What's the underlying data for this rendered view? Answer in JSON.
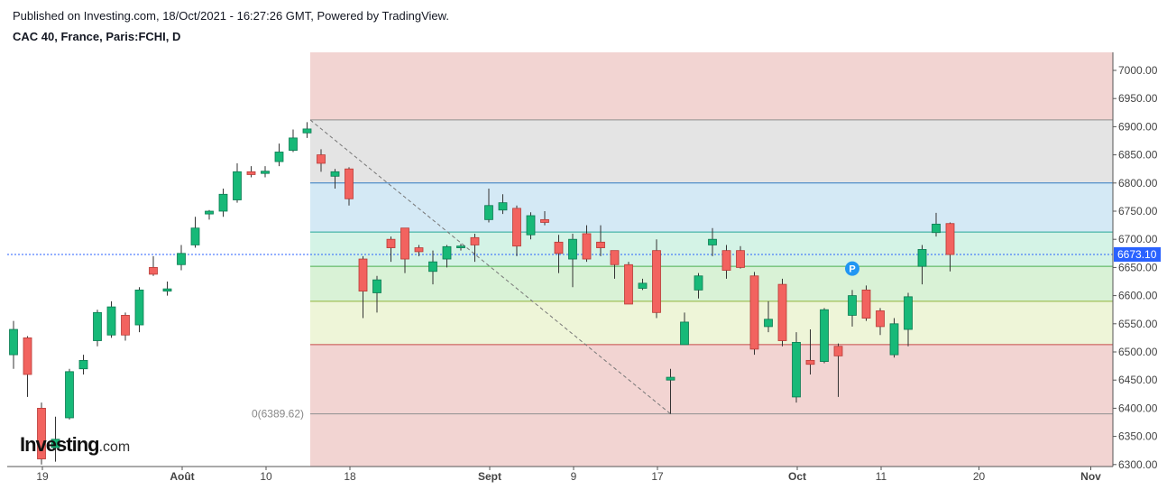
{
  "header": {
    "published": "Published on Investing.com, 18/Oct/2021 - 16:27:26 GMT, Powered by TradingView.",
    "symbol": "CAC 40, France, Paris:FCHI, D"
  },
  "logo": {
    "word": "Investing",
    "suffix": ".com"
  },
  "chart_data": {
    "type": "candlestick",
    "y_ticks": [
      "7000.00",
      "6950.00",
      "6900.00",
      "6850.00",
      "6800.00",
      "6750.00",
      "6700.00",
      "6650.00",
      "6600.00",
      "6550.00",
      "6500.00",
      "6450.00",
      "6400.00",
      "6350.00",
      "6300.00"
    ],
    "ylim": [
      6290,
      7030
    ],
    "x_ticks": [
      {
        "label": "19",
        "day": 0
      },
      {
        "label": "Août",
        "day": 10
      },
      {
        "label": "10",
        "day": 16
      },
      {
        "label": "18",
        "day": 22
      },
      {
        "label": "Sept",
        "day": 32
      },
      {
        "label": "9",
        "day": 38
      },
      {
        "label": "17",
        "day": 44
      },
      {
        "label": "Oct",
        "day": 54
      },
      {
        "label": "11",
        "day": 60
      },
      {
        "label": "20",
        "day": 67
      },
      {
        "label": "Nov",
        "day": 75
      }
    ],
    "last_price": 6673.1,
    "last_price_label": "6673.10",
    "fib_anchor_label": "0(6389.62)",
    "fib_levels": [
      6390,
      6513,
      6590,
      6652,
      6713,
      6800,
      6912
    ],
    "fib_bands": [
      {
        "from": 6270,
        "to": 6390,
        "color": "#f2d4d2"
      },
      {
        "from": 6390,
        "to": 6513,
        "color": "#f2d4d2"
      },
      {
        "from": 6513,
        "to": 6590,
        "color": "#eef5d8"
      },
      {
        "from": 6590,
        "to": 6652,
        "color": "#d9f2d6"
      },
      {
        "from": 6652,
        "to": 6713,
        "color": "#d4f3e6"
      },
      {
        "from": 6713,
        "to": 6800,
        "color": "#d4e9f5"
      },
      {
        "from": 6800,
        "to": 6912,
        "color": "#e4e4e4"
      },
      {
        "from": 6912,
        "to": 7040,
        "color": "#f2d4d2"
      }
    ],
    "fib_line_colors": [
      "#909090",
      "#c84a4a",
      "#8fb23a",
      "#4caf50",
      "#26a69a",
      "#2f7ac2",
      "#909090"
    ],
    "colors": {
      "up": "#17b978",
      "down": "#f2635f",
      "up_border": "#0d7a52",
      "down_border": "#b83a36"
    },
    "marker": {
      "label": "P",
      "day": 60,
      "price": 6648,
      "color": "#2196f3"
    },
    "candles": [
      {
        "d": 0,
        "o": 6495,
        "h": 6555,
        "l": 6470,
        "c": 6540
      },
      {
        "d": 1,
        "o": 6525,
        "h": 6528,
        "l": 6420,
        "c": 6460
      },
      {
        "d": 2,
        "o": 6400,
        "h": 6410,
        "l": 6300,
        "c": 6310
      },
      {
        "d": 3,
        "o": 6330,
        "h": 6385,
        "l": 6305,
        "c": 6345
      },
      {
        "d": 4,
        "o": 6383,
        "h": 6470,
        "l": 6380,
        "c": 6465
      },
      {
        "d": 5,
        "o": 6470,
        "h": 6495,
        "l": 6460,
        "c": 6485
      },
      {
        "d": 6,
        "o": 6520,
        "h": 6575,
        "l": 6510,
        "c": 6570
      },
      {
        "d": 7,
        "o": 6530,
        "h": 6590,
        "l": 6525,
        "c": 6580
      },
      {
        "d": 8,
        "o": 6565,
        "h": 6570,
        "l": 6520,
        "c": 6530
      },
      {
        "d": 9,
        "o": 6548,
        "h": 6615,
        "l": 6535,
        "c": 6610
      },
      {
        "d": 10,
        "o": 6650,
        "h": 6670,
        "l": 6635,
        "c": 6638
      },
      {
        "d": 11,
        "o": 6608,
        "h": 6625,
        "l": 6600,
        "c": 6612
      },
      {
        "d": 12,
        "o": 6655,
        "h": 6690,
        "l": 6645,
        "c": 6675
      },
      {
        "d": 13,
        "o": 6690,
        "h": 6740,
        "l": 6685,
        "c": 6720
      },
      {
        "d": 14,
        "o": 6745,
        "h": 6752,
        "l": 6735,
        "c": 6750
      },
      {
        "d": 15,
        "o": 6750,
        "h": 6790,
        "l": 6740,
        "c": 6780
      },
      {
        "d": 16,
        "o": 6770,
        "h": 6835,
        "l": 6765,
        "c": 6820
      },
      {
        "d": 17,
        "o": 6820,
        "h": 6830,
        "l": 6810,
        "c": 6815
      },
      {
        "d": 18,
        "o": 6817,
        "h": 6830,
        "l": 6810,
        "c": 6821
      },
      {
        "d": 19,
        "o": 6838,
        "h": 6870,
        "l": 6830,
        "c": 6855
      },
      {
        "d": 20,
        "o": 6858,
        "h": 6895,
        "l": 6855,
        "c": 6880
      },
      {
        "d": 21,
        "o": 6889,
        "h": 6908,
        "l": 6880,
        "c": 6896
      },
      {
        "d": 22,
        "o": 6850,
        "h": 6860,
        "l": 6820,
        "c": 6835
      },
      {
        "d": 23,
        "o": 6812,
        "h": 6825,
        "l": 6790,
        "c": 6820
      },
      {
        "d": 24,
        "o": 6825,
        "h": 6828,
        "l": 6760,
        "c": 6772
      },
      {
        "d": 25,
        "o": 6665,
        "h": 6670,
        "l": 6560,
        "c": 6608
      },
      {
        "d": 26,
        "o": 6605,
        "h": 6635,
        "l": 6570,
        "c": 6628
      },
      {
        "d": 27,
        "o": 6700,
        "h": 6705,
        "l": 6660,
        "c": 6685
      },
      {
        "d": 28,
        "o": 6720,
        "h": 6720,
        "l": 6640,
        "c": 6665
      },
      {
        "d": 29,
        "o": 6685,
        "h": 6690,
        "l": 6670,
        "c": 6678
      },
      {
        "d": 30,
        "o": 6643,
        "h": 6680,
        "l": 6620,
        "c": 6660
      },
      {
        "d": 31,
        "o": 6665,
        "h": 6690,
        "l": 6650,
        "c": 6687
      },
      {
        "d": 32,
        "o": 6685,
        "h": 6692,
        "l": 6680,
        "c": 6688
      },
      {
        "d": 33,
        "o": 6703,
        "h": 6710,
        "l": 6660,
        "c": 6690
      },
      {
        "d": 34,
        "o": 6735,
        "h": 6790,
        "l": 6730,
        "c": 6760
      },
      {
        "d": 35,
        "o": 6752,
        "h": 6780,
        "l": 6745,
        "c": 6765
      },
      {
        "d": 36,
        "o": 6755,
        "h": 6760,
        "l": 6670,
        "c": 6688
      },
      {
        "d": 37,
        "o": 6708,
        "h": 6748,
        "l": 6700,
        "c": 6742
      },
      {
        "d": 38,
        "o": 6735,
        "h": 6750,
        "l": 6725,
        "c": 6730
      },
      {
        "d": 39,
        "o": 6695,
        "h": 6708,
        "l": 6640,
        "c": 6675
      },
      {
        "d": 40,
        "o": 6665,
        "h": 6710,
        "l": 6615,
        "c": 6700
      },
      {
        "d": 41,
        "o": 6710,
        "h": 6725,
        "l": 6660,
        "c": 6665
      },
      {
        "d": 42,
        "o": 6695,
        "h": 6725,
        "l": 6670,
        "c": 6685
      },
      {
        "d": 43,
        "o": 6680,
        "h": 6680,
        "l": 6630,
        "c": 6655
      },
      {
        "d": 44,
        "o": 6655,
        "h": 6660,
        "l": 6585,
        "c": 6585
      },
      {
        "d": 45,
        "o": 6613,
        "h": 6630,
        "l": 6610,
        "c": 6622
      },
      {
        "d": 46,
        "o": 6680,
        "h": 6700,
        "l": 6560,
        "c": 6570
      },
      {
        "d": 47,
        "o": 6450,
        "h": 6470,
        "l": 6390,
        "c": 6455
      },
      {
        "d": 48,
        "o": 6513,
        "h": 6570,
        "l": 6513,
        "c": 6553
      },
      {
        "d": 49,
        "o": 6610,
        "h": 6640,
        "l": 6595,
        "c": 6635
      },
      {
        "d": 50,
        "o": 6690,
        "h": 6720,
        "l": 6670,
        "c": 6700
      },
      {
        "d": 51,
        "o": 6680,
        "h": 6690,
        "l": 6630,
        "c": 6645
      },
      {
        "d": 52,
        "o": 6680,
        "h": 6688,
        "l": 6648,
        "c": 6650
      },
      {
        "d": 53,
        "o": 6635,
        "h": 6642,
        "l": 6495,
        "c": 6505
      },
      {
        "d": 54,
        "o": 6545,
        "h": 6590,
        "l": 6535,
        "c": 6558
      },
      {
        "d": 55,
        "o": 6620,
        "h": 6630,
        "l": 6510,
        "c": 6520
      },
      {
        "d": 56,
        "o": 6420,
        "h": 6535,
        "l": 6410,
        "c": 6517
      },
      {
        "d": 57,
        "o": 6485,
        "h": 6540,
        "l": 6460,
        "c": 6478
      },
      {
        "d": 58,
        "o": 6483,
        "h": 6578,
        "l": 6480,
        "c": 6575
      },
      {
        "d": 59,
        "o": 6510,
        "h": 6515,
        "l": 6420,
        "c": 6493
      },
      {
        "d": 60,
        "o": 6565,
        "h": 6610,
        "l": 6545,
        "c": 6600
      },
      {
        "d": 61,
        "o": 6610,
        "h": 6618,
        "l": 6555,
        "c": 6560
      },
      {
        "d": 62,
        "o": 6573,
        "h": 6578,
        "l": 6530,
        "c": 6545
      },
      {
        "d": 63,
        "o": 6495,
        "h": 6560,
        "l": 6490,
        "c": 6550
      },
      {
        "d": 64,
        "o": 6540,
        "h": 6605,
        "l": 6510,
        "c": 6598
      },
      {
        "d": 65,
        "o": 6652,
        "h": 6690,
        "l": 6620,
        "c": 6682
      },
      {
        "d": 66,
        "o": 6712,
        "h": 6747,
        "l": 6705,
        "c": 6727
      },
      {
        "d": 67,
        "o": 6728,
        "h": 6730,
        "l": 6643,
        "c": 6673
      }
    ]
  }
}
